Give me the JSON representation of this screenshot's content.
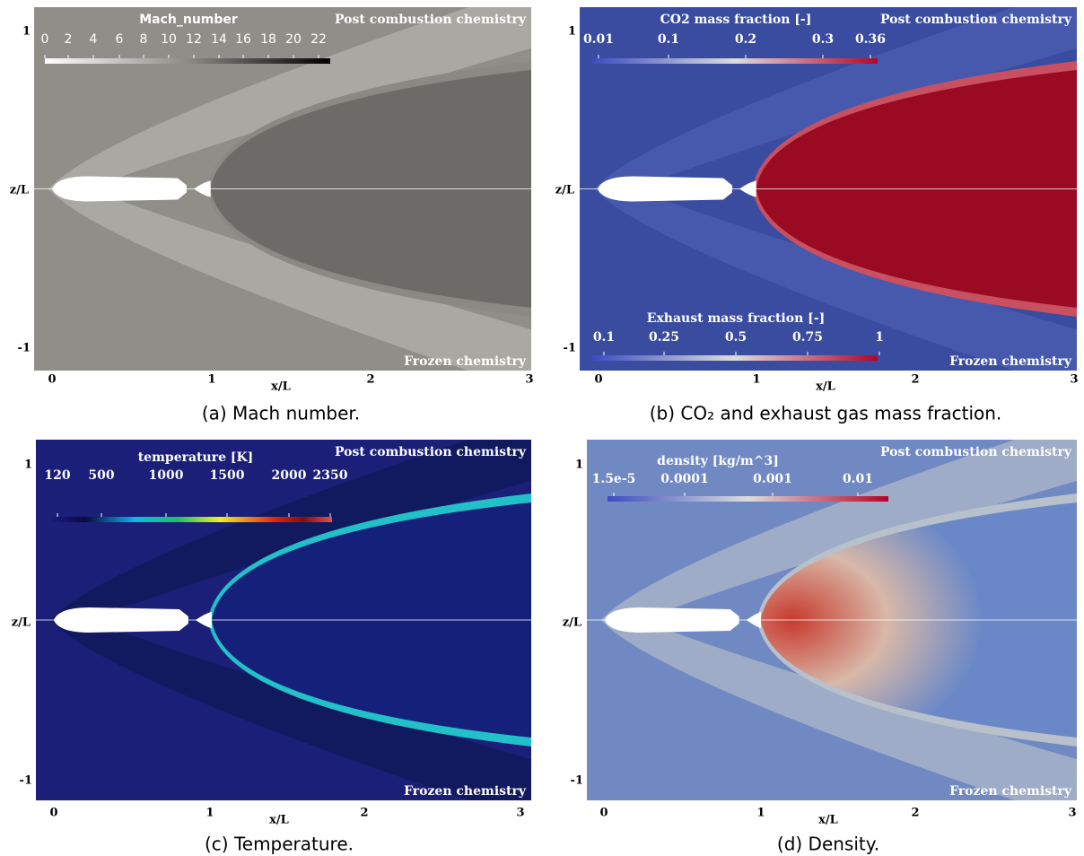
{
  "panels": [
    {
      "caption": "(a) Mach number.",
      "colorbars": [
        {
          "title": "Mach_number",
          "ticks": [
            "0",
            "2",
            "4",
            "6",
            "8",
            "10",
            "12",
            "14",
            "16",
            "18",
            "20",
            "22"
          ]
        }
      ],
      "top_label": "Post combustion chemistry",
      "bottom_label": "Frozen chemistry",
      "y_axis": {
        "label": "z/L",
        "ticks": [
          "1",
          "-1"
        ]
      },
      "x_axis": {
        "label": "x/L",
        "ticks": [
          "0",
          "1",
          "2",
          "3"
        ]
      }
    },
    {
      "caption": "(b) CO₂ and exhaust gas mass fraction.",
      "colorbars": [
        {
          "title": "CO2 mass fraction [-]",
          "ticks": [
            "0.01",
            "0.1",
            "0.2",
            "0.3",
            "0.36"
          ]
        },
        {
          "title": "Exhaust mass fraction [-]",
          "ticks": [
            "0.1",
            "0.25",
            "0.5",
            "0.75",
            "1"
          ]
        }
      ],
      "top_label": "Post combustion chemistry",
      "bottom_label": "Frozen chemistry",
      "y_axis": {
        "label": "z/L",
        "ticks": [
          "1",
          "-1"
        ]
      },
      "x_axis": {
        "label": "x/L",
        "ticks": [
          "0",
          "1",
          "2",
          "3"
        ]
      }
    },
    {
      "caption": "(c) Temperature.",
      "colorbars": [
        {
          "title": "temperature [K]",
          "ticks": [
            "120",
            "500",
            "1000",
            "1500",
            "2000",
            "2350"
          ]
        }
      ],
      "top_label": "Post combustion chemistry",
      "bottom_label": "Frozen chemistry",
      "y_axis": {
        "label": "z/L",
        "ticks": [
          "1",
          "-1"
        ]
      },
      "x_axis": {
        "label": "x/L",
        "ticks": [
          "0",
          "1",
          "2",
          "3"
        ]
      }
    },
    {
      "caption": "(d) Density.",
      "colorbars": [
        {
          "title": "density [kg/m^3]",
          "ticks": [
            "1.5e-5",
            "0.0001",
            "0.001",
            "0.01"
          ]
        }
      ],
      "top_label": "Post combustion chemistry",
      "bottom_label": "Frozen chemistry",
      "y_axis": {
        "label": "z/L",
        "ticks": [
          "1",
          "-1"
        ]
      },
      "x_axis": {
        "label": "x/L",
        "ticks": [
          "0",
          "1",
          "2",
          "3"
        ]
      }
    }
  ]
}
